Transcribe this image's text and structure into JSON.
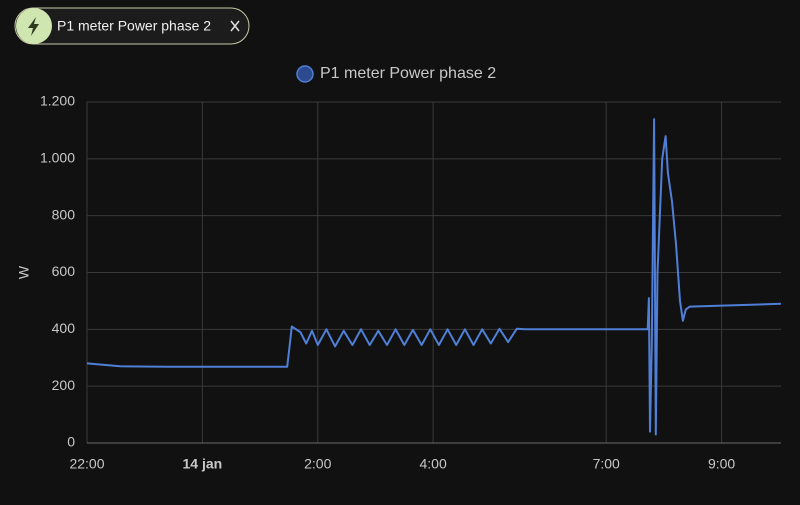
{
  "chip": {
    "label": "P1 meter Power phase 2"
  },
  "chart_data": {
    "type": "line",
    "y_label": "W",
    "x": [
      0,
      0.57,
      1.4,
      2.5,
      3.47,
      3.5,
      3.55,
      3.7,
      3.8,
      3.9,
      4.0,
      4.15,
      4.3,
      4.45,
      4.6,
      4.75,
      4.9,
      5.05,
      5.2,
      5.35,
      5.5,
      5.65,
      5.8,
      5.95,
      6.1,
      6.25,
      6.4,
      6.55,
      6.7,
      6.85,
      7.0,
      7.15,
      7.3,
      7.45,
      7.6,
      8.0,
      9.0,
      9.72,
      9.74,
      9.76,
      9.79,
      9.83,
      9.86,
      9.89,
      9.97,
      10.03,
      10.07,
      10.14,
      10.21,
      10.28,
      10.33,
      10.38,
      10.45,
      12.03
    ],
    "series": [
      {
        "name": "P1 meter Power phase 2",
        "color": "#4f7fd6",
        "values": [
          280,
          270,
          268,
          268,
          268,
          320,
          410,
          390,
          350,
          395,
          345,
          400,
          340,
          395,
          345,
          400,
          345,
          395,
          345,
          400,
          345,
          398,
          345,
          400,
          345,
          400,
          345,
          400,
          345,
          400,
          350,
          402,
          355,
          402,
          400,
          400,
          400,
          400,
          510,
          40,
          350,
          1140,
          30,
          600,
          1000,
          1080,
          950,
          850,
          700,
          500,
          430,
          470,
          480,
          490
        ]
      }
    ],
    "xlim": [
      0,
      12.03
    ],
    "xticks": [
      {
        "value": 0,
        "label": "22:00"
      },
      {
        "value": 2,
        "label": "14 jan"
      },
      {
        "value": 4,
        "label": "2:00"
      },
      {
        "value": 6,
        "label": "4:00"
      },
      {
        "value": 9,
        "label": "7:00"
      },
      {
        "value": 11,
        "label": "9:00"
      }
    ],
    "ylim": [
      0,
      1200
    ],
    "yticks": [
      0,
      200,
      400,
      600,
      800,
      {
        "value": 1000,
        "label": "1.000"
      },
      {
        "value": 1200,
        "label": "1.200"
      }
    ],
    "grid": true
  }
}
